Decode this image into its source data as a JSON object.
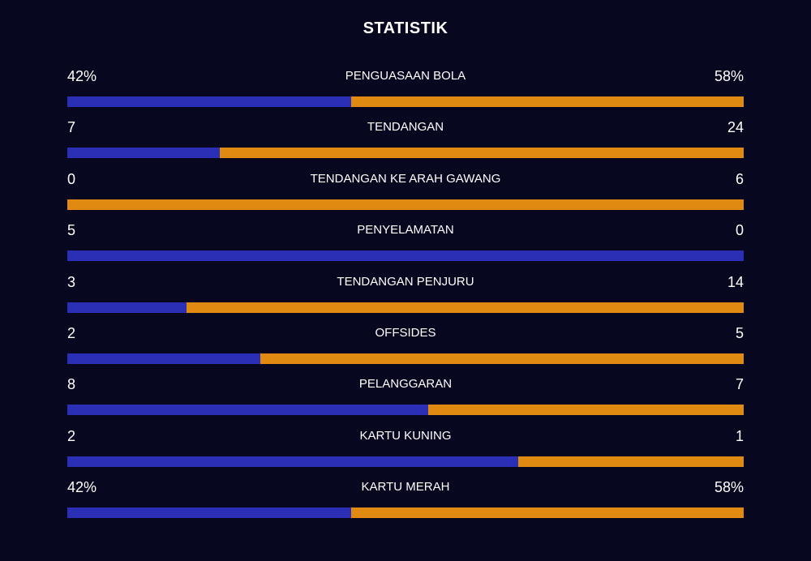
{
  "title": "STATISTIK",
  "colors": {
    "background": "#07071f",
    "home": "#2b2fb5",
    "away": "#e08a12"
  },
  "stats": [
    {
      "label": "PENGUASAAN BOLA",
      "left": "42%",
      "right": "58%",
      "left_share": 0.42
    },
    {
      "label": "TENDANGAN",
      "left": "7",
      "right": "24",
      "left_share": 0.2258
    },
    {
      "label": "TENDANGAN KE ARAH GAWANG",
      "left": "0",
      "right": "6",
      "left_share": 0
    },
    {
      "label": "PENYELAMATAN",
      "left": "5",
      "right": "0",
      "left_share": 1
    },
    {
      "label": "TENDANGAN PENJURU",
      "left": "3",
      "right": "14",
      "left_share": 0.1765
    },
    {
      "label": "OFFSIDES",
      "left": "2",
      "right": "5",
      "left_share": 0.2857
    },
    {
      "label": "PELANGGARAN",
      "left": "8",
      "right": "7",
      "left_share": 0.5333
    },
    {
      "label": "KARTU KUNING",
      "left": "2",
      "right": "1",
      "left_share": 0.6667
    },
    {
      "label": "KARTU MERAH",
      "left": "42%",
      "right": "58%",
      "left_share": 0.42
    }
  ]
}
